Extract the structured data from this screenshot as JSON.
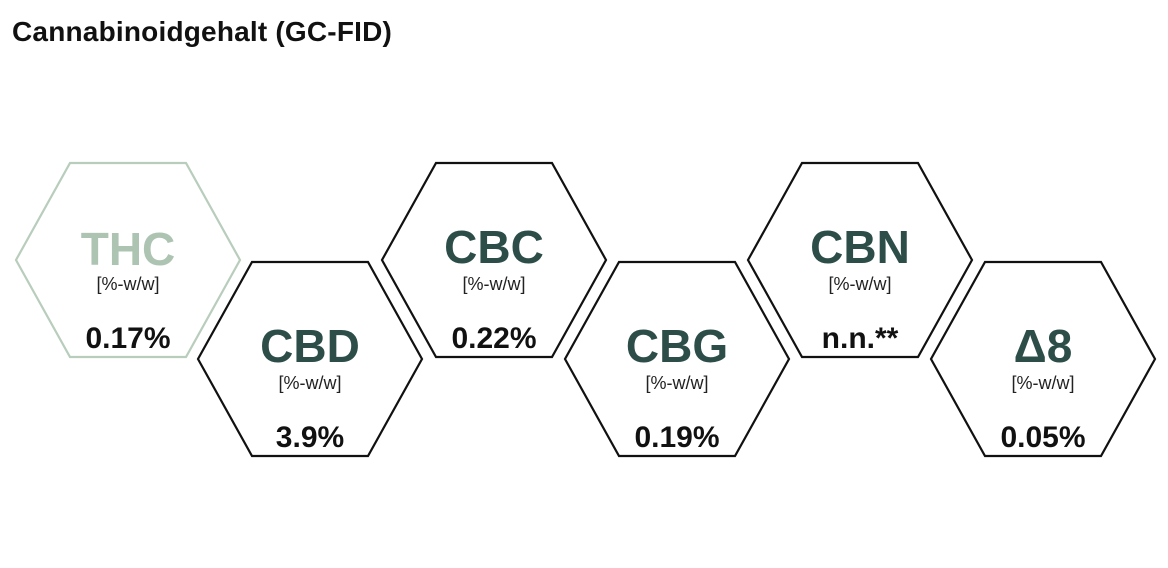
{
  "title": "Cannabinoidgehalt (GC-FID)",
  "colors": {
    "faded_text": "#adc4b2",
    "faded_border": "#b8cdbc",
    "dark_text": "#2d4e48",
    "border": "#111111"
  },
  "cannabinoids": [
    {
      "name": "THC",
      "unit": "[%-w/w]",
      "value": "0.17%"
    },
    {
      "name": "CBD",
      "unit": "[%-w/w]",
      "value": "3.9%"
    },
    {
      "name": "CBC",
      "unit": "[%-w/w]",
      "value": "0.22%"
    },
    {
      "name": "CBG",
      "unit": "[%-w/w]",
      "value": "0.19%"
    },
    {
      "name": "CBN",
      "unit": "[%-w/w]",
      "value": "n.n.**"
    },
    {
      "name": "Δ8",
      "unit": "[%-w/w]",
      "value": "0.05%"
    }
  ]
}
